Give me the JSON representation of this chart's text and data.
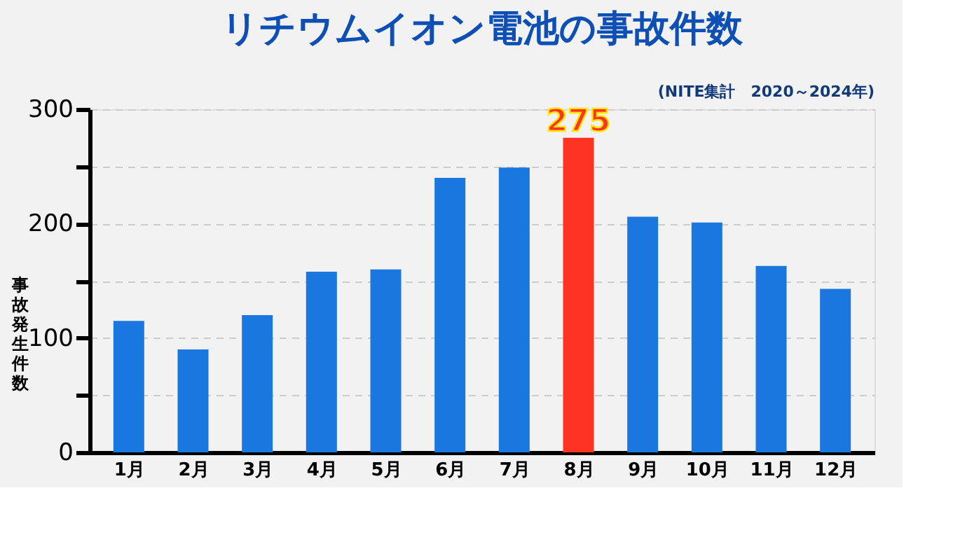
{
  "chart_data": {
    "type": "bar",
    "title": "リチウムイオン電池の事故件数",
    "ylabel": "事故発生件数",
    "annotations": [
      "(NITE集計　2020～2024年)"
    ],
    "categories": [
      "1月",
      "2月",
      "3月",
      "4月",
      "5月",
      "6月",
      "7月",
      "8月",
      "9月",
      "10月",
      "11月",
      "12月"
    ],
    "values": [
      115,
      90,
      120,
      158,
      160,
      240,
      249,
      275,
      206,
      201,
      163,
      143
    ],
    "colors": [
      "#1a77e0",
      "#1a77e0",
      "#1a77e0",
      "#1a77e0",
      "#1a77e0",
      "#1a77e0",
      "#1a77e0",
      "#ff3322",
      "#1a77e0",
      "#1a77e0",
      "#1a77e0",
      "#1a77e0"
    ],
    "value_labels": [
      null,
      null,
      null,
      null,
      null,
      null,
      null,
      "275",
      null,
      null,
      null,
      null
    ],
    "ylim": [
      0,
      300
    ],
    "yticks": [
      0,
      {
        "value": 50,
        "label": null
      },
      100,
      {
        "value": 150,
        "label": null
      },
      200,
      {
        "value": 250,
        "label": null
      },
      300
    ],
    "grid": "y"
  }
}
